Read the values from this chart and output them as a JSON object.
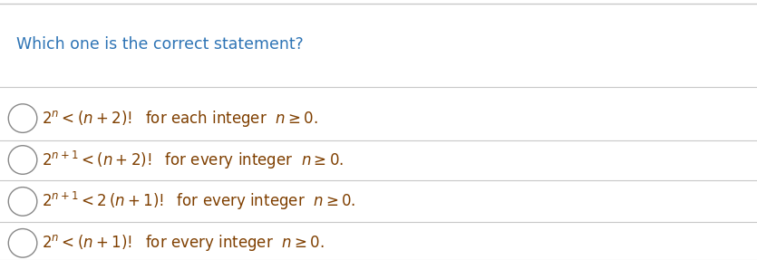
{
  "title": "Which one is the correct statement?",
  "title_color": "#2e74b5",
  "bg_color": "#ffffff",
  "line_color": "#c8c8c8",
  "circle_color": "#888888",
  "math_color": "#7f3f00",
  "options": [
    {
      "label": "$2^n < (n+2)!$  for each integer  $n \\geq 0$."
    },
    {
      "label": "$2^{n+1} < (n+2)!$  for every integer  $n \\geq 0$."
    },
    {
      "label": "$2^{n+1} < 2\\,(n+1)!$  for every integer  $n \\geq 0$."
    },
    {
      "label": "$2^n < (n+1)!$  for every integer  $n \\geq 0$."
    }
  ],
  "figsize": [
    8.35,
    2.87
  ],
  "dpi": 100,
  "title_fontsize": 12.5,
  "option_fontsize": 12
}
